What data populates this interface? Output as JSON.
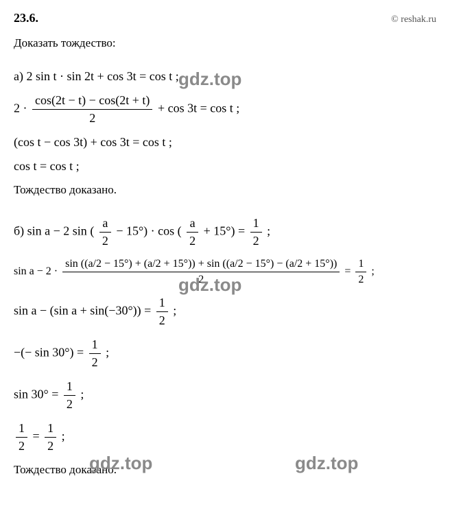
{
  "header": {
    "problem_number": "23.6.",
    "copyright": "© reshak.ru"
  },
  "prompt": "Доказать тождество:",
  "watermark_text": "gdz.top",
  "section_a": {
    "label": "а)",
    "line1": "2 sin t · sin 2t + cos 3t = cos t ;",
    "line2_prefix": "2 · ",
    "line2_num": "cos(2t − t) − cos(2t + t)",
    "line2_den": "2",
    "line2_suffix": " + cos 3t = cos t ;",
    "line3": "(cos t − cos 3t) + cos 3t = cos t ;",
    "line4": "cos t = cos t ;",
    "conclusion": "Тождество доказано."
  },
  "section_b": {
    "label": "б)",
    "line1_prefix": "sin a − 2 sin ",
    "line1_frac1_num": "a",
    "line1_frac1_den": "2",
    "line1_mid1": " − 15°) · cos (",
    "line1_frac2_num": "a",
    "line1_frac2_den": "2",
    "line1_mid2": " + 15°) = ",
    "line1_rhs_num": "1",
    "line1_rhs_den": "2",
    "line1_end": " ;",
    "line2_prefix": "sin a − 2 · ",
    "line2_num": "sin ((a/2 − 15°) + (a/2 + 15°)) + sin ((a/2 − 15°) − (a/2 + 15°))",
    "line2_den": "2",
    "line2_suffix_num": "1",
    "line2_suffix_den": "2",
    "line2_end": " ;",
    "line3_prefix": "sin a − (sin a + sin(−30°)) = ",
    "line3_num": "1",
    "line3_den": "2",
    "line3_end": " ;",
    "line4_prefix": "−(− sin 30°) = ",
    "line4_num": "1",
    "line4_den": "2",
    "line4_end": " ;",
    "line5_prefix": "sin 30° = ",
    "line5_num": "1",
    "line5_den": "2",
    "line5_end": " ;",
    "line6_lhs_num": "1",
    "line6_lhs_den": "2",
    "line6_mid": " = ",
    "line6_rhs_num": "1",
    "line6_rhs_den": "2",
    "line6_end": " ;",
    "conclusion": "Тождество доказано."
  },
  "colors": {
    "text": "#000000",
    "background": "#ffffff",
    "watermark": "#8a8a8a",
    "copyright": "#555555"
  },
  "typography": {
    "body_font": "Times New Roman",
    "body_size_pt": 13,
    "watermark_font": "Arial",
    "watermark_size_pt": 20,
    "watermark_weight": "bold"
  }
}
